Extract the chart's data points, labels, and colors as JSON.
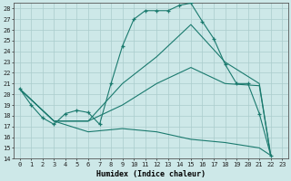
{
  "xlabel": "Humidex (Indice chaleur)",
  "bg_color": "#cde8e8",
  "grid_color": "#b0d4d4",
  "line_color": "#1a7a6e",
  "xlim": [
    -0.5,
    23.5
  ],
  "ylim": [
    14,
    28.5
  ],
  "xticks": [
    0,
    1,
    2,
    3,
    4,
    5,
    6,
    7,
    8,
    9,
    10,
    11,
    12,
    13,
    14,
    15,
    16,
    17,
    18,
    19,
    20,
    21,
    22,
    23
  ],
  "yticks": [
    14,
    15,
    16,
    17,
    18,
    19,
    20,
    21,
    22,
    23,
    24,
    25,
    26,
    27,
    28
  ],
  "series_main": {
    "x": [
      0,
      1,
      2,
      3,
      4,
      5,
      6,
      7,
      8,
      9,
      10,
      11,
      12,
      13,
      14,
      15,
      16,
      17,
      18,
      19,
      20,
      21,
      22
    ],
    "y": [
      20.5,
      19.0,
      17.8,
      17.2,
      18.2,
      18.5,
      18.3,
      17.2,
      21.0,
      24.5,
      27.0,
      27.8,
      27.8,
      27.8,
      28.3,
      28.5,
      26.8,
      25.2,
      22.8,
      21.0,
      21.0,
      18.2,
      14.3
    ]
  },
  "series_lines": [
    {
      "x": [
        0,
        3,
        6,
        9,
        12,
        15,
        18,
        21,
        22
      ],
      "y": [
        20.5,
        17.5,
        17.5,
        21.0,
        23.5,
        26.5,
        23.0,
        21.0,
        14.3
      ]
    },
    {
      "x": [
        0,
        3,
        6,
        9,
        12,
        15,
        18,
        21,
        22
      ],
      "y": [
        20.5,
        17.5,
        17.5,
        19.0,
        21.0,
        22.5,
        21.0,
        20.8,
        14.3
      ]
    },
    {
      "x": [
        0,
        3,
        6,
        9,
        12,
        15,
        18,
        21,
        22
      ],
      "y": [
        20.5,
        17.5,
        16.5,
        16.8,
        16.5,
        15.8,
        15.5,
        15.0,
        14.3
      ]
    }
  ]
}
